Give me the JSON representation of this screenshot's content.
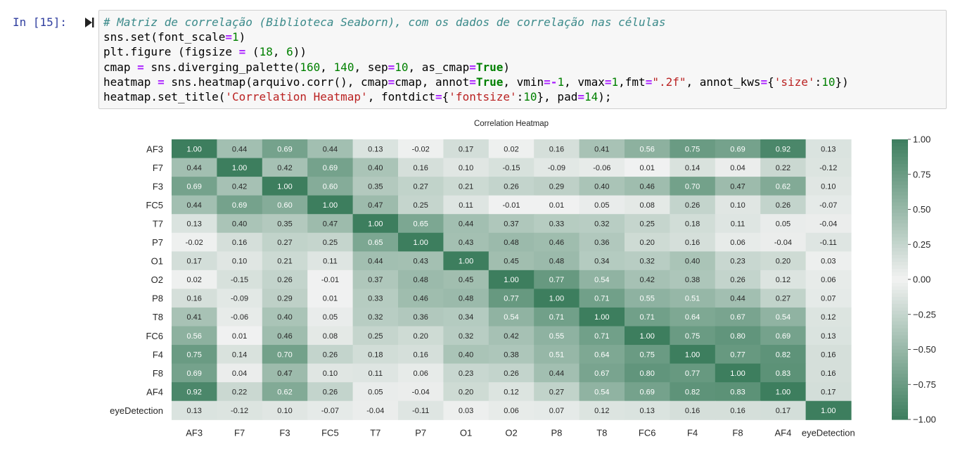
{
  "cell": {
    "prompt": "In [15]:",
    "code_lines": [
      [
        {
          "t": "# Matriz de correlação (Biblioteca Seaborn), com os dados de correlação nas células",
          "c": "com"
        }
      ],
      [
        {
          "t": "sns.set(font_scale"
        },
        {
          "t": "=",
          "c": "op"
        },
        {
          "t": "1",
          "c": "num"
        },
        {
          "t": ")"
        }
      ],
      [
        {
          "t": "plt.figure (figsize "
        },
        {
          "t": "=",
          "c": "op"
        },
        {
          "t": " ("
        },
        {
          "t": "18",
          "c": "num"
        },
        {
          "t": ", "
        },
        {
          "t": "6",
          "c": "num"
        },
        {
          "t": "))"
        }
      ],
      [
        {
          "t": "cmap "
        },
        {
          "t": "=",
          "c": "op"
        },
        {
          "t": " sns.diverging_palette("
        },
        {
          "t": "160",
          "c": "num"
        },
        {
          "t": ", "
        },
        {
          "t": "140",
          "c": "num"
        },
        {
          "t": ", sep"
        },
        {
          "t": "=",
          "c": "op"
        },
        {
          "t": "10",
          "c": "num"
        },
        {
          "t": ", as_cmap"
        },
        {
          "t": "=",
          "c": "op"
        },
        {
          "t": "True",
          "c": "kw"
        },
        {
          "t": ")"
        }
      ],
      [
        {
          "t": "heatmap "
        },
        {
          "t": "=",
          "c": "op"
        },
        {
          "t": " sns.heatmap(arquivo.corr(), cmap"
        },
        {
          "t": "=",
          "c": "op"
        },
        {
          "t": "cmap, annot"
        },
        {
          "t": "=",
          "c": "op"
        },
        {
          "t": "True",
          "c": "kw"
        },
        {
          "t": ", vmin"
        },
        {
          "t": "=-",
          "c": "op"
        },
        {
          "t": "1",
          "c": "num"
        },
        {
          "t": ", vmax"
        },
        {
          "t": "=",
          "c": "op"
        },
        {
          "t": "1",
          "c": "num"
        },
        {
          "t": ",fmt"
        },
        {
          "t": "=",
          "c": "op"
        },
        {
          "t": "\".2f\"",
          "c": "str"
        },
        {
          "t": ", annot_kws"
        },
        {
          "t": "=",
          "c": "op"
        },
        {
          "t": "{"
        },
        {
          "t": "'size'",
          "c": "str"
        },
        {
          "t": ":"
        },
        {
          "t": "10",
          "c": "num"
        },
        {
          "t": "})"
        }
      ],
      [
        {
          "t": "heatmap.set_title("
        },
        {
          "t": "'Correlation Heatmap'",
          "c": "str"
        },
        {
          "t": ", fontdict"
        },
        {
          "t": "=",
          "c": "op"
        },
        {
          "t": "{"
        },
        {
          "t": "'fontsize'",
          "c": "str"
        },
        {
          "t": ":"
        },
        {
          "t": "10",
          "c": "num"
        },
        {
          "t": "}, pad"
        },
        {
          "t": "=",
          "c": "op"
        },
        {
          "t": "14",
          "c": "num"
        },
        {
          "t": ");"
        }
      ]
    ]
  },
  "colors": {
    "cmap_low": "#3d7e5e",
    "cmap_mid": "#f2f2f2",
    "cmap_high": "#3d7e5e",
    "prompt": "#303f9f",
    "code_bg": "#f7f7f7"
  },
  "chart_data": {
    "type": "heatmap",
    "title": "Correlation Heatmap",
    "labels": [
      "AF3",
      "F7",
      "F3",
      "FC5",
      "T7",
      "P7",
      "O1",
      "O2",
      "P8",
      "T8",
      "FC6",
      "F4",
      "F8",
      "AF4",
      "eyeDetection"
    ],
    "vmin": -1,
    "vmax": 1,
    "colorbar_ticks": [
      "1.00",
      "0.75",
      "0.50",
      "0.25",
      "0.00",
      "−0.25",
      "−0.50",
      "−0.75",
      "−1.00"
    ],
    "matrix": [
      [
        1.0,
        0.44,
        0.69,
        0.44,
        0.13,
        -0.02,
        0.17,
        0.02,
        0.16,
        0.41,
        0.56,
        0.75,
        0.69,
        0.92,
        0.13
      ],
      [
        0.44,
        1.0,
        0.42,
        0.69,
        0.4,
        0.16,
        0.1,
        -0.15,
        -0.09,
        -0.06,
        0.01,
        0.14,
        0.04,
        0.22,
        -0.12
      ],
      [
        0.69,
        0.42,
        1.0,
        0.6,
        0.35,
        0.27,
        0.21,
        0.26,
        0.29,
        0.4,
        0.46,
        0.7,
        0.47,
        0.62,
        0.1
      ],
      [
        0.44,
        0.69,
        0.6,
        1.0,
        0.47,
        0.25,
        0.11,
        -0.01,
        0.01,
        0.05,
        0.08,
        0.26,
        0.1,
        0.26,
        -0.07
      ],
      [
        0.13,
        0.4,
        0.35,
        0.47,
        1.0,
        0.65,
        0.44,
        0.37,
        0.33,
        0.32,
        0.25,
        0.18,
        0.11,
        0.05,
        -0.04
      ],
      [
        -0.02,
        0.16,
        0.27,
        0.25,
        0.65,
        1.0,
        0.43,
        0.48,
        0.46,
        0.36,
        0.2,
        0.16,
        0.06,
        -0.04,
        -0.11
      ],
      [
        0.17,
        0.1,
        0.21,
        0.11,
        0.44,
        0.43,
        1.0,
        0.45,
        0.48,
        0.34,
        0.32,
        0.4,
        0.23,
        0.2,
        0.03
      ],
      [
        0.02,
        -0.15,
        0.26,
        -0.01,
        0.37,
        0.48,
        0.45,
        1.0,
        0.77,
        0.54,
        0.42,
        0.38,
        0.26,
        0.12,
        0.06
      ],
      [
        0.16,
        -0.09,
        0.29,
        0.01,
        0.33,
        0.46,
        0.48,
        0.77,
        1.0,
        0.71,
        0.55,
        0.51,
        0.44,
        0.27,
        0.07
      ],
      [
        0.41,
        -0.06,
        0.4,
        0.05,
        0.32,
        0.36,
        0.34,
        0.54,
        0.71,
        1.0,
        0.71,
        0.64,
        0.67,
        0.54,
        0.12
      ],
      [
        0.56,
        0.01,
        0.46,
        0.08,
        0.25,
        0.2,
        0.32,
        0.42,
        0.55,
        0.71,
        1.0,
        0.75,
        0.8,
        0.69,
        0.13
      ],
      [
        0.75,
        0.14,
        0.7,
        0.26,
        0.18,
        0.16,
        0.4,
        0.38,
        0.51,
        0.64,
        0.75,
        1.0,
        0.77,
        0.82,
        0.16
      ],
      [
        0.69,
        0.04,
        0.47,
        0.1,
        0.11,
        0.06,
        0.23,
        0.26,
        0.44,
        0.67,
        0.8,
        0.77,
        1.0,
        0.83,
        0.16
      ],
      [
        0.92,
        0.22,
        0.62,
        0.26,
        0.05,
        -0.04,
        0.2,
        0.12,
        0.27,
        0.54,
        0.69,
        0.82,
        0.83,
        1.0,
        0.17
      ],
      [
        0.13,
        -0.12,
        0.1,
        -0.07,
        -0.04,
        -0.11,
        0.03,
        0.06,
        0.07,
        0.12,
        0.13,
        0.16,
        0.16,
        0.17,
        1.0
      ]
    ]
  }
}
